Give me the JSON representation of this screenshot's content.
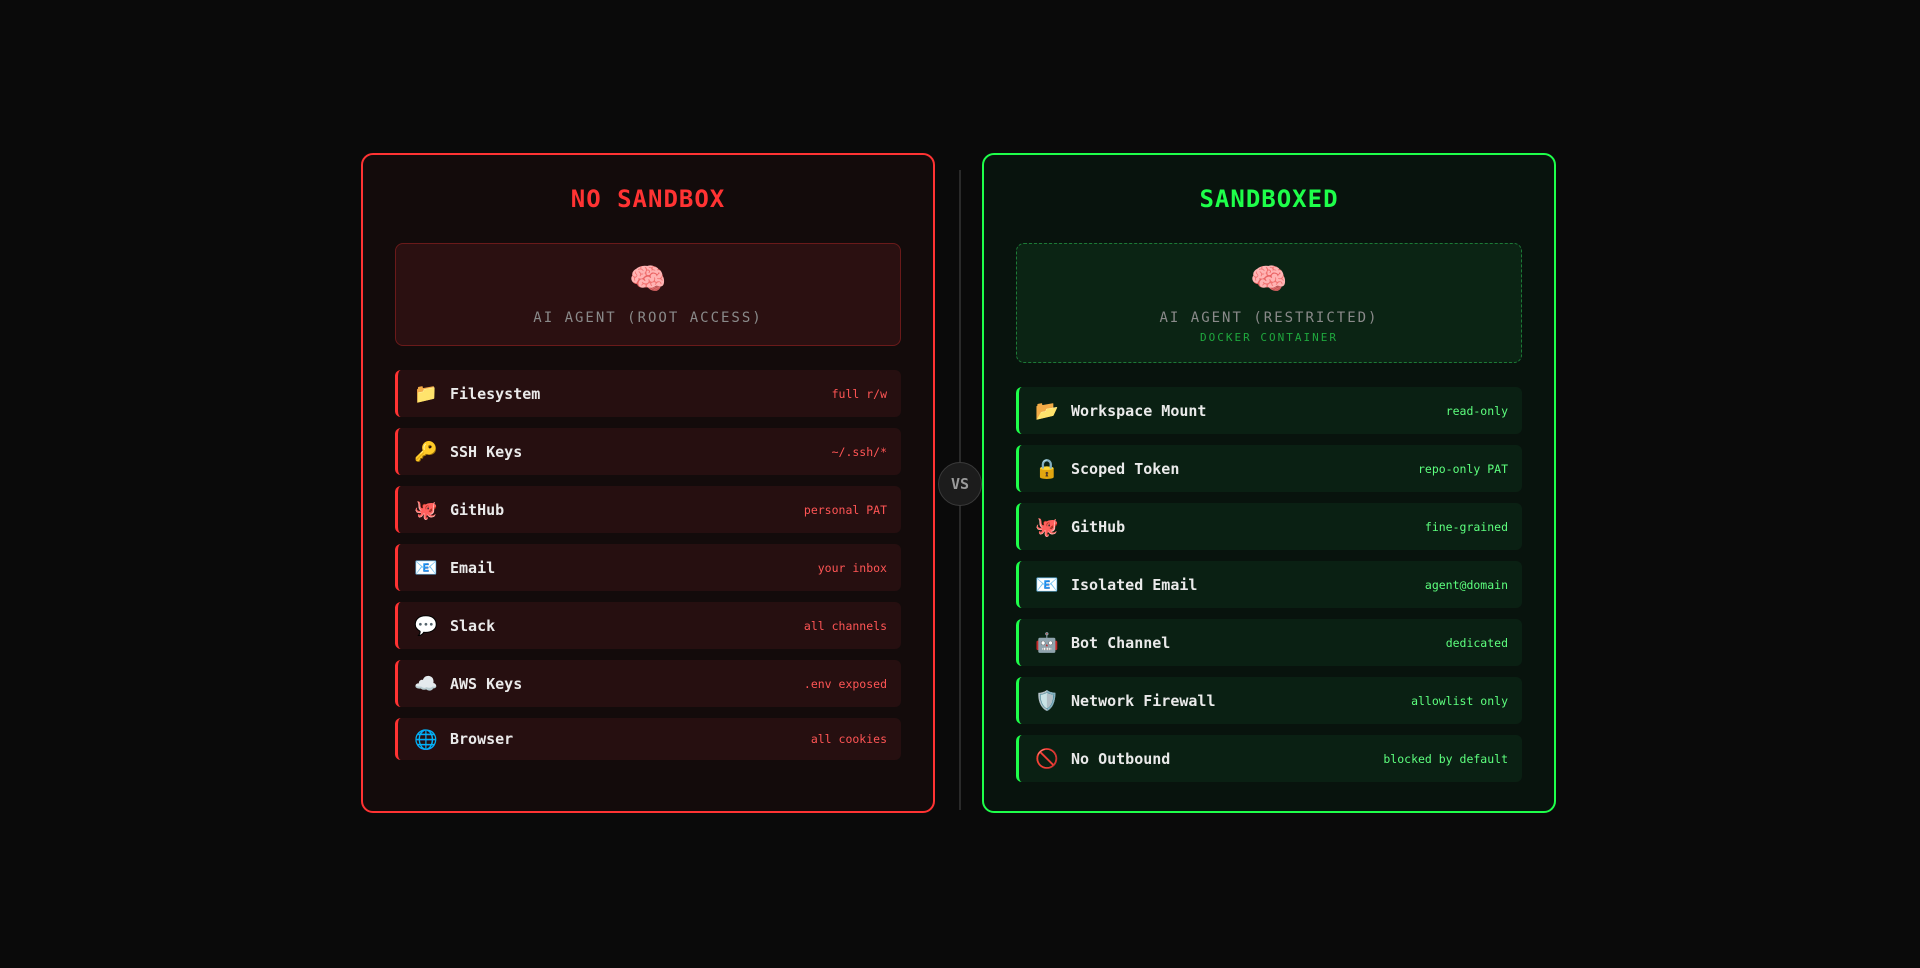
{
  "colors": {
    "danger": "#ff3333",
    "safe": "#1eff4a"
  },
  "vs_label": "VS",
  "left": {
    "title": "NO SANDBOX",
    "agent": {
      "icon": "🧠",
      "label": "AI AGENT (ROOT ACCESS)"
    },
    "items": [
      {
        "icon": "📁",
        "name": "Filesystem",
        "value": "full r/w"
      },
      {
        "icon": "🔑",
        "name": "SSH Keys",
        "value": "~/.ssh/*"
      },
      {
        "icon": "🐙",
        "name": "GitHub",
        "value": "personal PAT"
      },
      {
        "icon": "📧",
        "name": "Email",
        "value": "your inbox"
      },
      {
        "icon": "💬",
        "name": "Slack",
        "value": "all channels"
      },
      {
        "icon": "☁️",
        "name": "AWS Keys",
        "value": ".env exposed"
      },
      {
        "icon": "🌐",
        "name": "Browser",
        "value": "all cookies"
      }
    ]
  },
  "right": {
    "title": "SANDBOXED",
    "agent": {
      "icon": "🧠",
      "label": "AI AGENT (RESTRICTED)",
      "sublabel": "DOCKER CONTAINER"
    },
    "items": [
      {
        "icon": "📂",
        "name": "Workspace Mount",
        "value": "read-only"
      },
      {
        "icon": "🔒",
        "name": "Scoped Token",
        "value": "repo-only PAT"
      },
      {
        "icon": "🐙",
        "name": "GitHub",
        "value": "fine-grained"
      },
      {
        "icon": "📧",
        "name": "Isolated Email",
        "value": "agent@domain"
      },
      {
        "icon": "🤖",
        "name": "Bot Channel",
        "value": "dedicated"
      },
      {
        "icon": "🛡️",
        "name": "Network Firewall",
        "value": "allowlist only"
      },
      {
        "icon": "🚫",
        "name": "No Outbound",
        "value": "blocked by default"
      }
    ]
  }
}
